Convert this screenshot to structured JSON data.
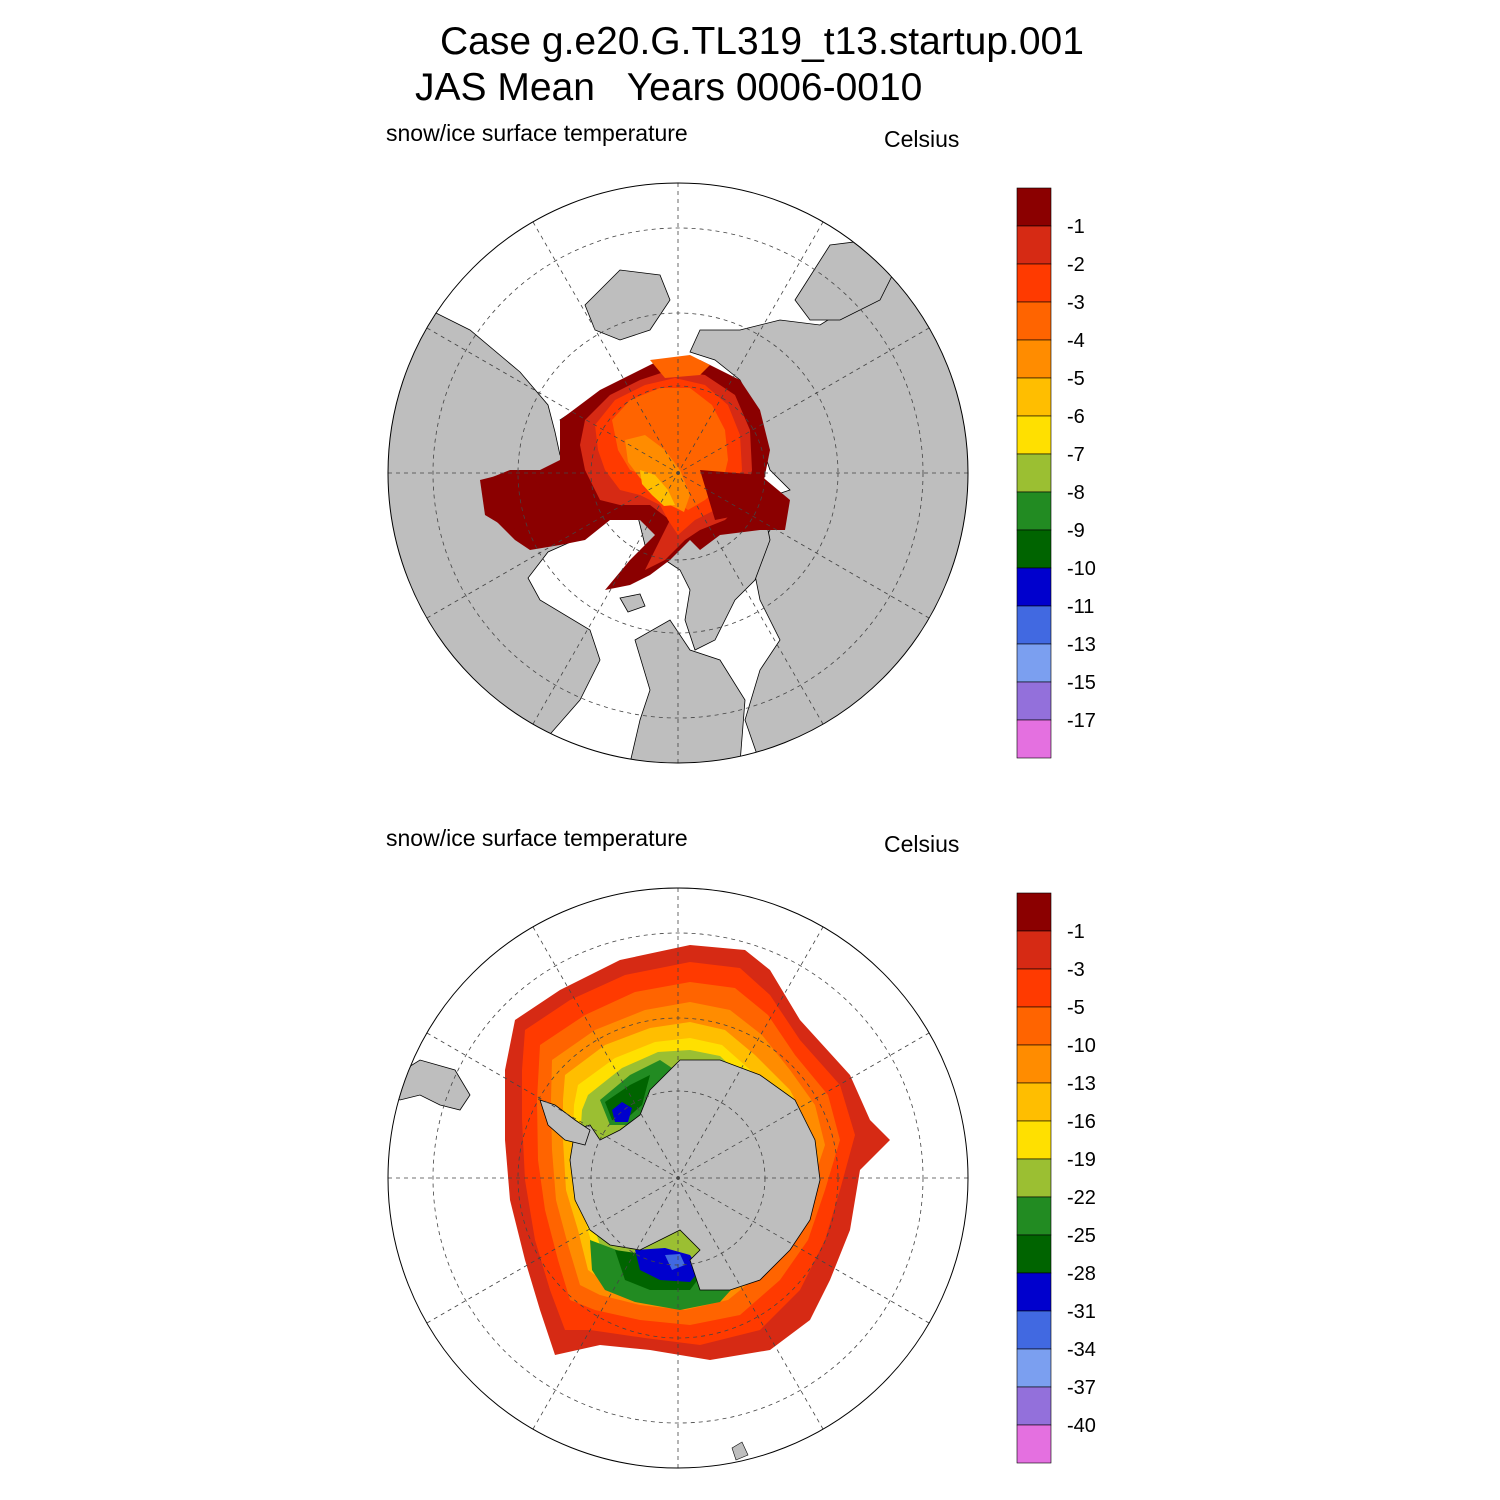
{
  "header": {
    "title_line1": "Case g.e20.G.TL319_t13.startup.001",
    "title_line2": "JAS Mean   Years 0006-0010"
  },
  "chart_data": [
    {
      "type": "heatmap",
      "projection": "north-polar-stereographic",
      "title": "snow/ice surface temperature",
      "units": "Celsius",
      "colorbar_labels": [
        "-1",
        "-2",
        "-3",
        "-4",
        "-5",
        "-6",
        "-7",
        "-8",
        "-9",
        "-10",
        "-11",
        "-13",
        "-15",
        "-17"
      ],
      "colors": [
        "#8b0000",
        "#d62a14",
        "#ff3a00",
        "#ff6400",
        "#ff8c00",
        "#ffbe00",
        "#ffe000",
        "#9bbf32",
        "#228b22",
        "#006400",
        "#0000cd",
        "#4169e1",
        "#7b9ff0",
        "#9370db",
        "#e470e0"
      ],
      "land_color": "#bebebe"
    },
    {
      "type": "heatmap",
      "projection": "south-polar-stereographic",
      "title": "snow/ice surface temperature",
      "units": "Celsius",
      "colorbar_labels": [
        "-1",
        "-3",
        "-5",
        "-10",
        "-13",
        "-16",
        "-19",
        "-22",
        "-25",
        "-28",
        "-31",
        "-34",
        "-37",
        "-40"
      ],
      "colors": [
        "#8b0000",
        "#d62a14",
        "#ff3a00",
        "#ff6400",
        "#ff8c00",
        "#ffbe00",
        "#ffe000",
        "#9bbf32",
        "#228b22",
        "#006400",
        "#0000cd",
        "#4169e1",
        "#7b9ff0",
        "#9370db",
        "#e470e0"
      ],
      "land_color": "#bebebe"
    }
  ]
}
